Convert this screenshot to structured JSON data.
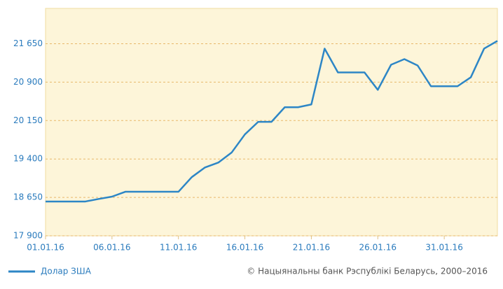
{
  "chart_data": {
    "type": "line",
    "categories": [
      "01.01.16",
      null,
      null,
      null,
      null,
      "06.01.16",
      null,
      null,
      null,
      null,
      "11.01.16",
      null,
      null,
      null,
      null,
      "16.01.16",
      null,
      null,
      null,
      null,
      "21.01.16",
      null,
      null,
      null,
      null,
      "26.01.16",
      null,
      null,
      null,
      null,
      "31.01.16",
      null,
      null,
      null,
      null
    ],
    "series": [
      {
        "name": "Долар ЗША",
        "color": "#2d86c6",
        "values": [
          18570,
          18570,
          18570,
          18570,
          18620,
          18665,
          18760,
          18760,
          18760,
          18760,
          18760,
          19045,
          19235,
          19330,
          19525,
          19880,
          20125,
          20125,
          20410,
          20410,
          20465,
          21555,
          21090,
          21090,
          21090,
          20750,
          21240,
          21350,
          21225,
          20820,
          20820,
          20820,
          20995,
          21555,
          21705
        ]
      }
    ],
    "ylim": [
      17900,
      22340
    ],
    "yticks": [
      {
        "value": 17900,
        "label": "17 900"
      },
      {
        "value": 18650,
        "label": "18 650"
      },
      {
        "value": 19400,
        "label": "19 400"
      },
      {
        "value": 20150,
        "label": "20 150"
      },
      {
        "value": 20900,
        "label": "20 900"
      },
      {
        "value": 21650,
        "label": "21 650"
      }
    ],
    "grid": true,
    "credit": "© Нацыянальны банк Рэспублікі Беларусь, 2000–2016"
  }
}
